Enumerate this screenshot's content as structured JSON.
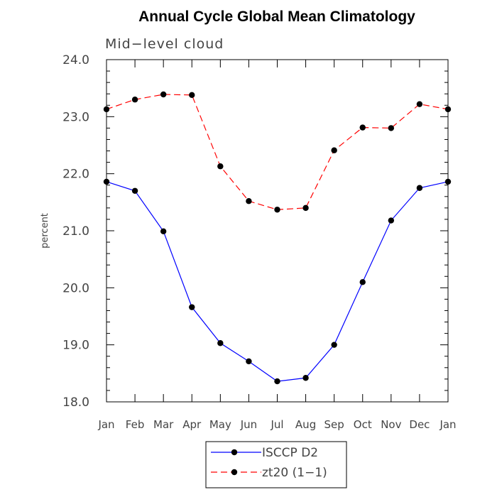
{
  "chart_data": {
    "type": "line",
    "title": "Annual Cycle Global Mean Climatology",
    "subtitle": "Mid−level cloud",
    "ylabel": "percent",
    "xlabel": "",
    "categories": [
      "Jan",
      "Feb",
      "Mar",
      "Apr",
      "May",
      "Jun",
      "Jul",
      "Aug",
      "Sep",
      "Oct",
      "Nov",
      "Dec",
      "Jan"
    ],
    "ylim": [
      18.0,
      24.0
    ],
    "y_ticks": [
      "18.0",
      "19.0",
      "20.0",
      "21.0",
      "22.0",
      "23.0",
      "24.0"
    ],
    "legend_position": "bottom",
    "series": [
      {
        "name": "ISCCP D2",
        "color": "#0000ff",
        "line_style": "solid",
        "values": [
          21.86,
          21.7,
          20.99,
          19.66,
          19.03,
          18.71,
          18.36,
          18.42,
          19.0,
          20.1,
          21.18,
          21.75,
          21.86
        ]
      },
      {
        "name": "zt20 (1−1)",
        "color": "#ff0000",
        "line_style": "dashed",
        "values": [
          23.13,
          23.3,
          23.39,
          23.38,
          22.13,
          21.52,
          21.37,
          21.4,
          22.41,
          22.81,
          22.8,
          23.22,
          23.13
        ]
      }
    ]
  }
}
